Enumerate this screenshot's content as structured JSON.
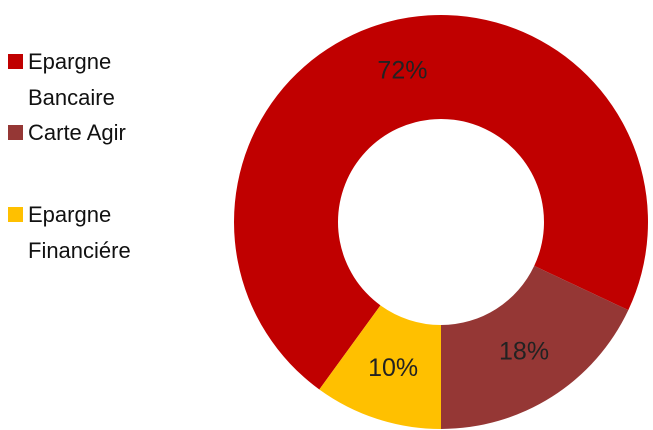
{
  "chart_data": {
    "type": "donut",
    "categories": [
      "Epargne Bancaire",
      "Carte Agir",
      "Epargne Financiére"
    ],
    "values": [
      72,
      18,
      10
    ],
    "value_labels": [
      "72%",
      "18%",
      "10%"
    ],
    "colors": [
      "#c00000",
      "#953735",
      "#ffc000"
    ],
    "legend": "left"
  }
}
